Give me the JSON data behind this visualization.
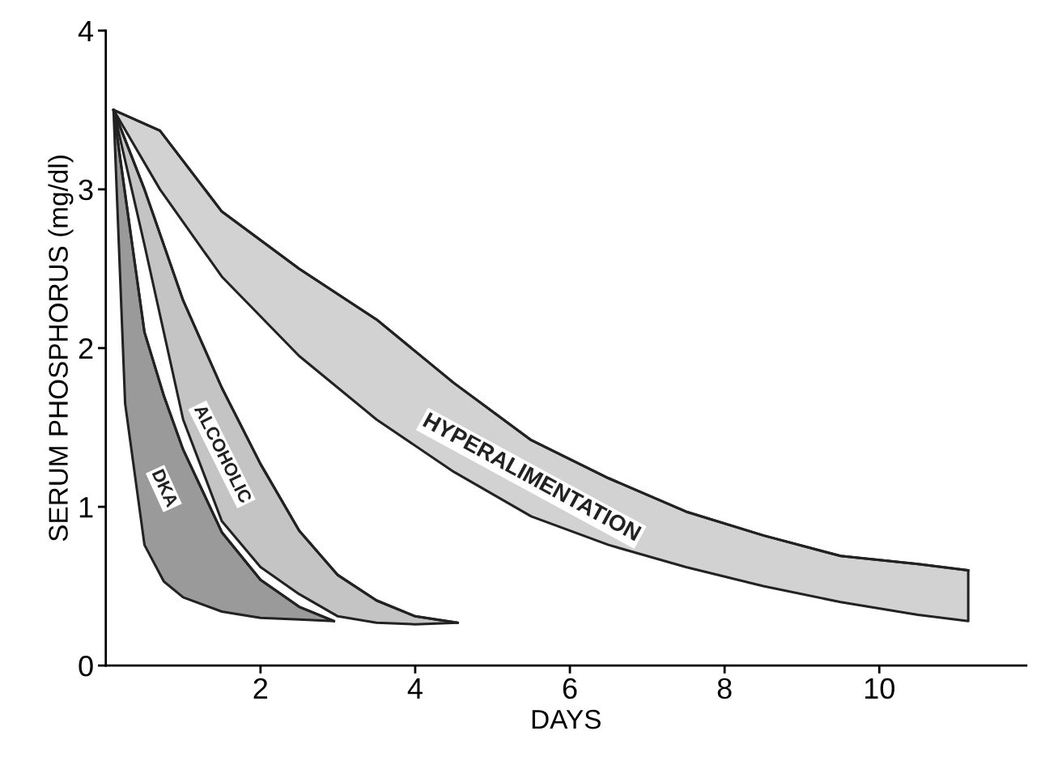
{
  "chart_data": {
    "type": "line",
    "xlabel": "DAYS",
    "ylabel": "SERUM PHOSPHORUS (mg/dl)",
    "xlim": [
      0,
      11.9
    ],
    "ylim": [
      0,
      4.0
    ],
    "xticks": [
      2,
      4,
      6,
      8,
      10
    ],
    "yticks": [
      0,
      1,
      2,
      3,
      4
    ],
    "grid": false,
    "legend": false,
    "series": [
      {
        "name": "DKA",
        "color": "#222222",
        "x": [
          0.1,
          0.25,
          0.5,
          0.75,
          1,
          1.5,
          2,
          2.5,
          2.95
        ],
        "values": [
          3.5,
          2.97,
          2.1,
          1.7,
          1.36,
          0.84,
          0.54,
          0.37,
          0.28
        ],
        "upper": [
          3.5,
          2.97,
          2.1,
          1.7,
          1.36,
          0.84,
          0.54,
          0.37,
          0.28
        ],
        "lower": [
          3.5,
          1.65,
          0.76,
          0.53,
          0.43,
          0.34,
          0.3,
          0.29,
          0.28
        ]
      },
      {
        "name": "ALCOHOLIC",
        "color": "#222222",
        "x": [
          0.1,
          0.5,
          1,
          1.5,
          2,
          2.5,
          3,
          3.5,
          4,
          4.55
        ],
        "values": [
          3.5,
          3.0,
          2.3,
          1.75,
          1.27,
          0.85,
          0.57,
          0.41,
          0.31,
          0.27
        ],
        "upper": [
          3.5,
          3.0,
          2.3,
          1.75,
          1.27,
          0.85,
          0.57,
          0.41,
          0.31,
          0.27
        ],
        "lower": [
          3.5,
          2.65,
          1.55,
          0.91,
          0.62,
          0.45,
          0.31,
          0.27,
          0.26,
          0.27
        ]
      },
      {
        "name": "HYPERALIMENTATION",
        "color": "#222222",
        "x": [
          0.1,
          0.7,
          1.5,
          2.5,
          3.5,
          4.5,
          5.5,
          6.5,
          7.5,
          8.5,
          9.5,
          10.5,
          11.15
        ],
        "values": [
          3.5,
          3.37,
          2.86,
          2.5,
          2.18,
          1.78,
          1.42,
          1.18,
          0.97,
          0.82,
          0.69,
          0.64,
          0.6
        ],
        "upper": [
          3.5,
          3.37,
          2.86,
          2.5,
          2.18,
          1.78,
          1.42,
          1.18,
          0.97,
          0.82,
          0.69,
          0.64,
          0.6
        ],
        "lower": [
          3.5,
          3.0,
          2.45,
          1.95,
          1.55,
          1.22,
          0.94,
          0.76,
          0.62,
          0.5,
          0.4,
          0.32,
          0.28
        ]
      }
    ]
  }
}
